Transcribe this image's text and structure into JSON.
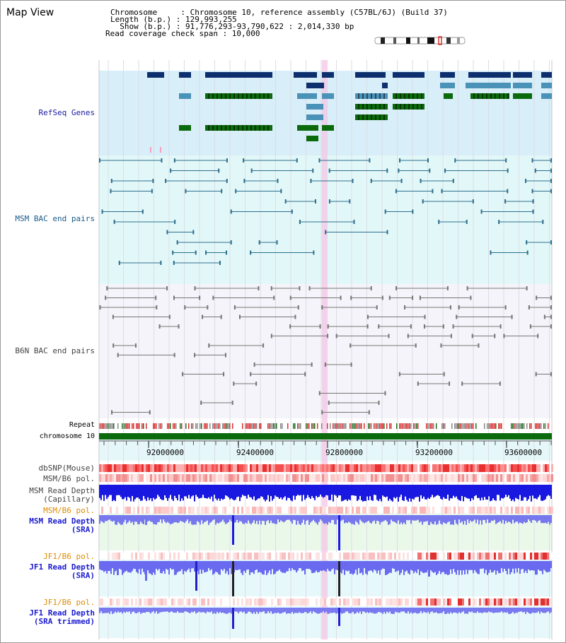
{
  "page": {
    "title": "Map View"
  },
  "info": {
    "chromosome": "Chromosome     : Chromosome 10, reference assembly (C57BL/6J) (Build 37)",
    "length": "Length (b.p.) : 129,993,255",
    "show": "  Show (b.p.) : 91,776,293-93,790,622 : 2,014,330 bp",
    "span": "Read coverage check span : 10,000"
  },
  "tracks": {
    "refseq": "RefSeq Genes",
    "msm_bac": "MSM BAC end pairs",
    "b6n_bac": "B6N BAC end pairs",
    "repeat": "Repeat",
    "chromosome": "chromosome 10",
    "dbsnp": "dbSNP(Mouse)",
    "msm_b6_pol": "MSM/B6 pol.",
    "msm_depth_cap_1": "MSM Read Depth",
    "msm_depth_cap_2": "(Capillary)",
    "msm_b6_pol2": "MSM/B6 pol.",
    "msm_depth_sra_1": "MSM Read Depth",
    "msm_depth_sra_2": "(SRA)",
    "jf1_b6_pol": "JF1/B6 pol.",
    "jf1_depth_1": "JF1 Read Depth",
    "jf1_depth_2": "(SRA)",
    "jf1_b6_pol2": "JF1/B6 pol.",
    "jf1_trim_1": "JF1 Read Depth",
    "jf1_trim_2": "(SRA trimmed)"
  },
  "axis": {
    "ticks": [
      "92000000",
      "92400000",
      "92800000",
      "93200000",
      "93600000"
    ]
  },
  "colors": {
    "refseq_bg": "#d8eef8",
    "msm_bg": "#e2f8f8",
    "b6n_bg": "#f4f4fa",
    "gene_dark": "#0d2f6e",
    "gene_mid": "#4a92b8",
    "gene_green": "#0b6a0b",
    "msm_bac": "#2e6e8e",
    "b6n_bac": "#777777",
    "chromosome": "#0b6a0b",
    "highlight": "#f4c6e6"
  }
}
